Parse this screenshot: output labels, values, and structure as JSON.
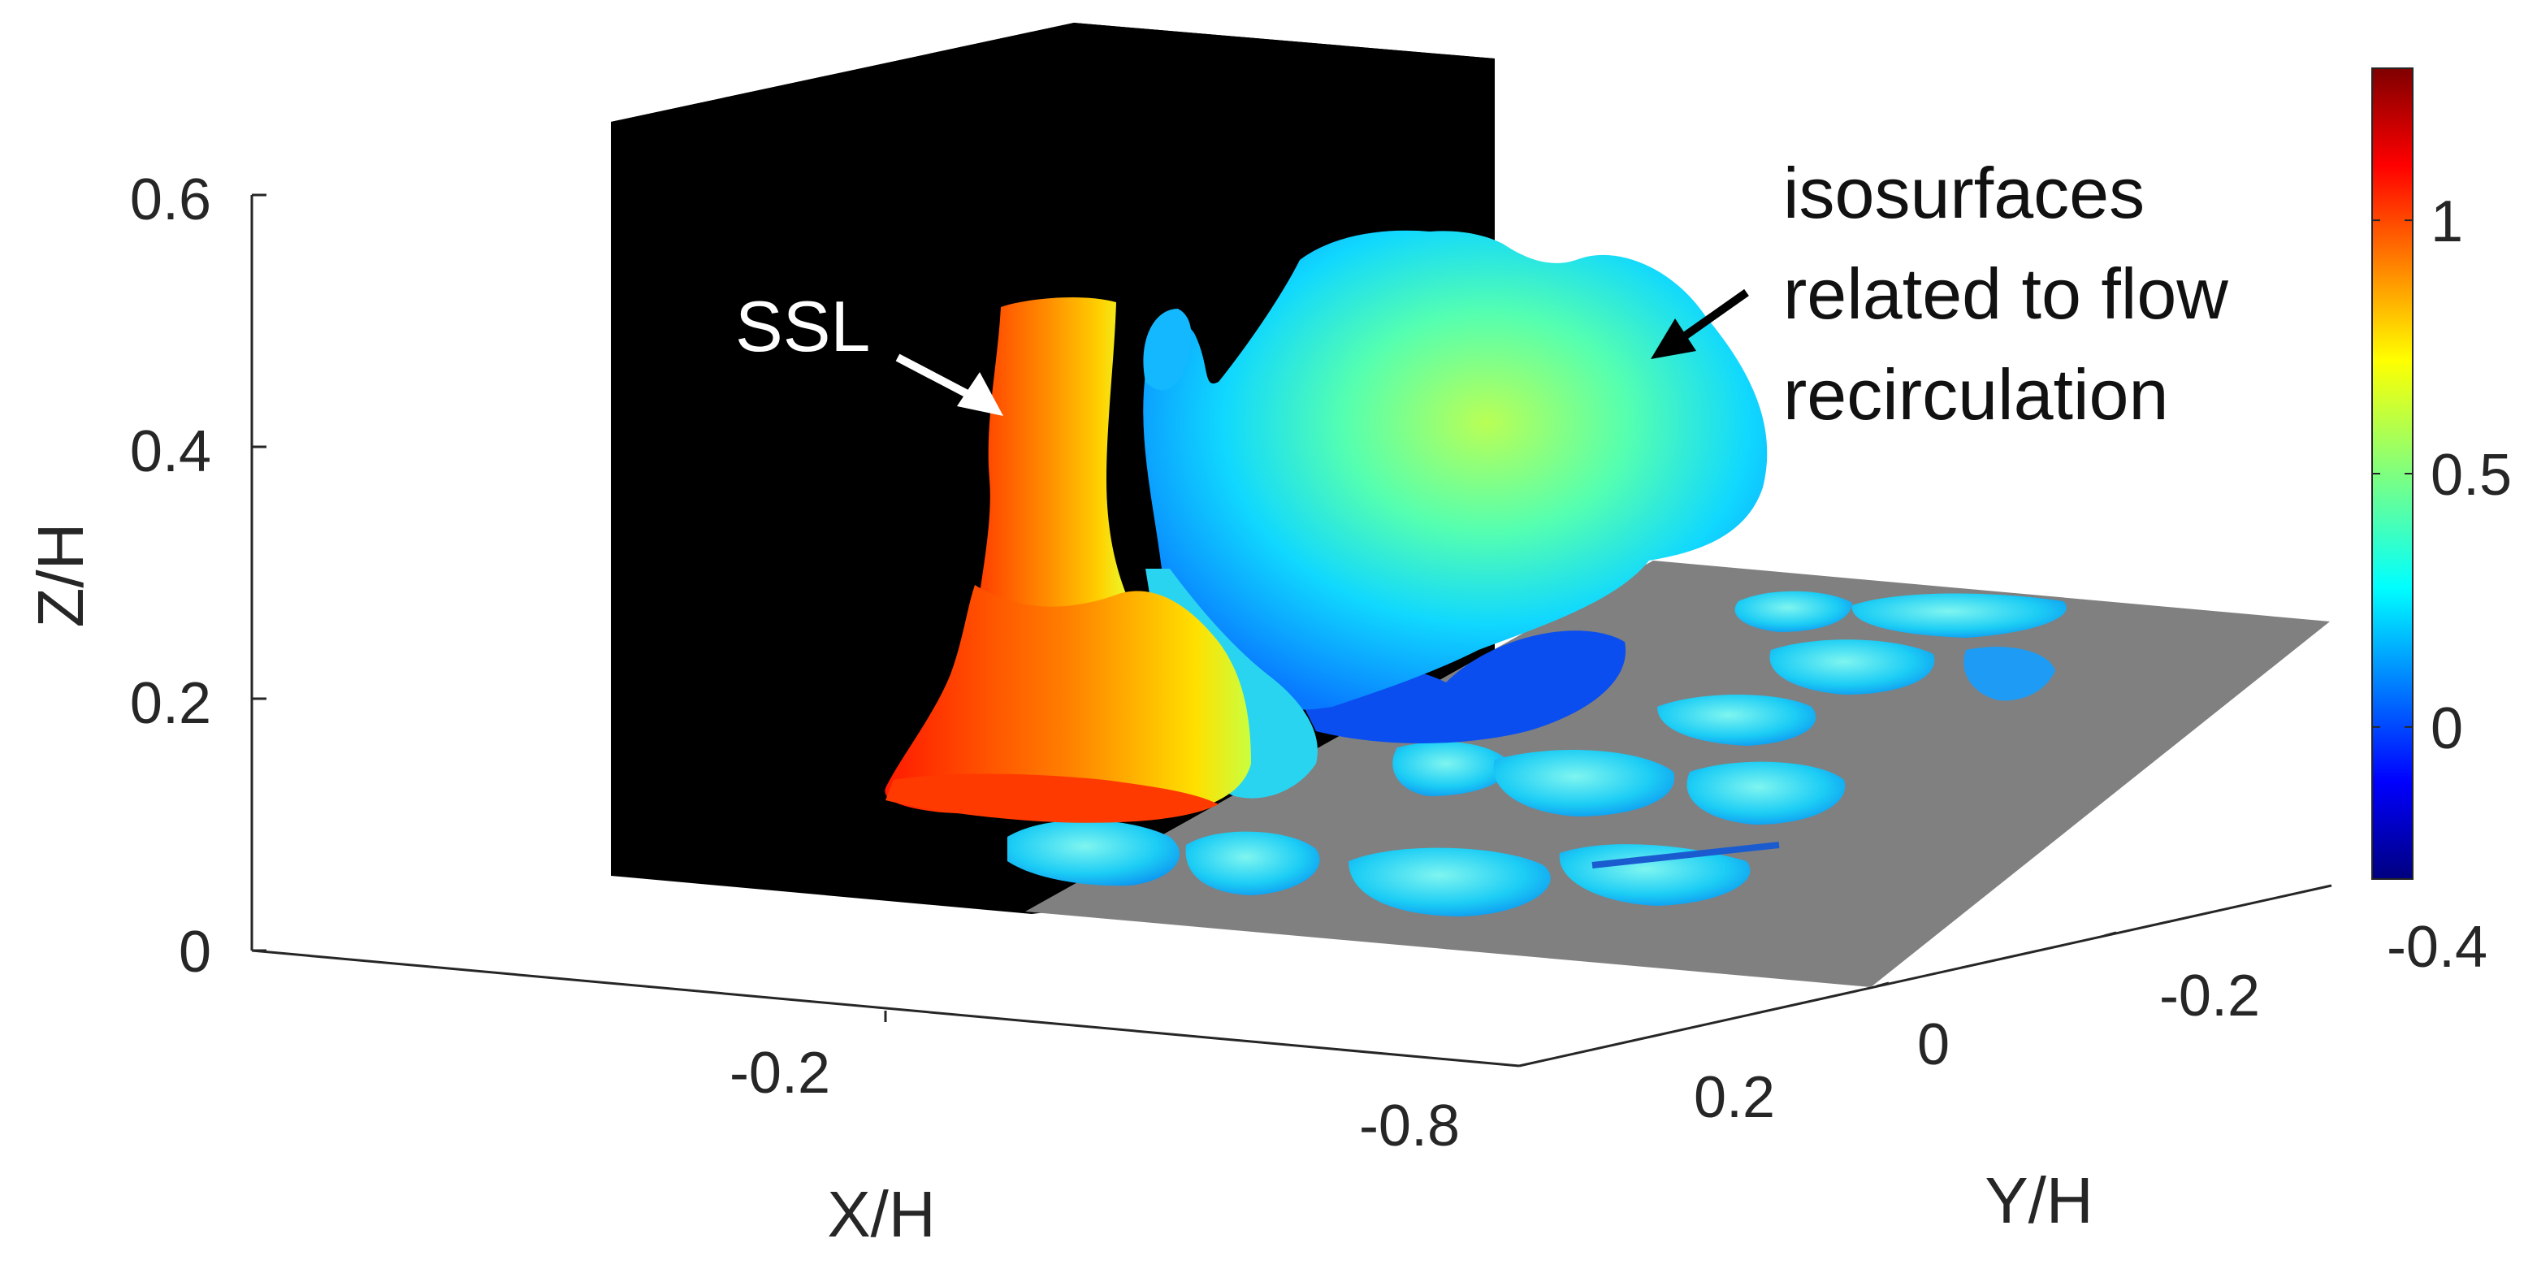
{
  "chart_data": {
    "type": "isosurface-3d",
    "xlabel": "X/H",
    "ylabel": "Y/H",
    "zlabel": "Z/H",
    "x_ticks": [
      "-0.2",
      "-0.8"
    ],
    "y_ticks": [
      "-0.4",
      "-0.2",
      "0",
      "0.2"
    ],
    "z_ticks": [
      "0",
      "0.2",
      "0.4",
      "0.6"
    ],
    "zlim": [
      0,
      0.6
    ],
    "colorbar": {
      "ticks": [
        {
          "label": "1",
          "value": 1
        },
        {
          "label": "0.5",
          "value": 0.5
        },
        {
          "label": "0",
          "value": 0
        }
      ],
      "range": [
        -0.3,
        1.3
      ],
      "colormap": "jet"
    },
    "annotations": [
      {
        "id": "ssl",
        "text": "SSL",
        "arrow_color": "#ffffff"
      },
      {
        "id": "recirculation",
        "lines": [
          "isosurfaces",
          "related to flow",
          "recirculation"
        ],
        "arrow_color": "#000000"
      }
    ],
    "colors": {
      "obstacle": "#000000",
      "ground_plane": "#808080",
      "axis_lines": "#262626"
    }
  }
}
